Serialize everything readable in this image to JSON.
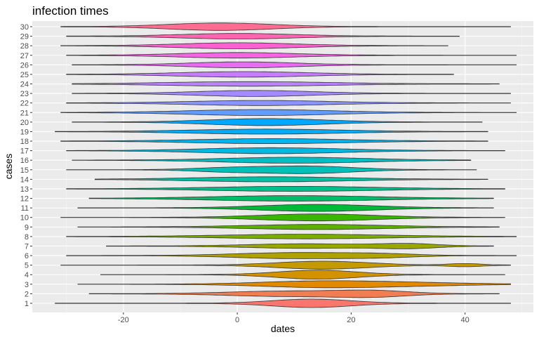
{
  "chart_data": {
    "type": "violin",
    "title": "infection times",
    "xlabel": "dates",
    "ylabel": "cases",
    "xlim": [
      -36,
      52
    ],
    "x_ticks": [
      -20,
      0,
      20,
      40
    ],
    "x_tick_labels": [
      "-20",
      "0",
      "20",
      "40"
    ],
    "grid": true,
    "legend": "none",
    "categories": [
      "1",
      "2",
      "3",
      "4",
      "5",
      "6",
      "7",
      "8",
      "9",
      "10",
      "11",
      "12",
      "13",
      "14",
      "15",
      "16",
      "17",
      "18",
      "19",
      "20",
      "21",
      "22",
      "23",
      "24",
      "25",
      "26",
      "27",
      "28",
      "29",
      "30"
    ],
    "colors": [
      "#F8766D",
      "#F27D52",
      "#E38900",
      "#D39200",
      "#C49A00",
      "#AFA100",
      "#99A800",
      "#7CAE00",
      "#5BB300",
      "#39B600",
      "#00BA38",
      "#00BE67",
      "#00C08B",
      "#00C1A3",
      "#00C0B8",
      "#00BFC4",
      "#00B9E3",
      "#00B4EF",
      "#00ADFA",
      "#00A9FF",
      "#619CFF",
      "#8B93FF",
      "#A58AFF",
      "#B983FF",
      "#C77CFF",
      "#E76BF3",
      "#F564E3",
      "#FD61D1",
      "#FF64B0",
      "#FF6C91"
    ],
    "series": [
      {
        "name": "1",
        "min": -32,
        "max": 48,
        "peaks": [
          [
            13,
            0.85,
            7
          ]
        ]
      },
      {
        "name": "2",
        "min": -26,
        "max": 46,
        "peaks": [
          [
            9,
            0.55,
            10
          ],
          [
            24,
            0.55,
            6
          ]
        ]
      },
      {
        "name": "3",
        "min": -28,
        "max": 48,
        "peaks": [
          [
            14,
            0.6,
            10
          ],
          [
            30,
            0.3,
            10
          ]
        ]
      },
      {
        "name": "4",
        "min": -24,
        "max": 47,
        "peaks": [
          [
            14,
            0.9,
            7
          ]
        ]
      },
      {
        "name": "5",
        "min": -31,
        "max": 48,
        "peaks": [
          [
            15,
            0.8,
            8
          ],
          [
            40,
            0.3,
            3
          ]
        ]
      },
      {
        "name": "6",
        "min": -30,
        "max": 49,
        "peaks": [
          [
            10,
            0.6,
            10
          ],
          [
            25,
            0.3,
            6
          ]
        ]
      },
      {
        "name": "7",
        "min": -23,
        "max": 45,
        "peaks": [
          [
            12,
            0.45,
            10
          ],
          [
            30,
            0.45,
            5
          ]
        ]
      },
      {
        "name": "8",
        "min": -30,
        "max": 49,
        "peaks": [
          [
            12,
            0.45,
            14
          ]
        ]
      },
      {
        "name": "9",
        "min": -28,
        "max": 46,
        "peaks": [
          [
            14,
            0.5,
            12
          ]
        ]
      },
      {
        "name": "10",
        "min": -31,
        "max": 47,
        "peaks": [
          [
            14,
            0.7,
            10
          ]
        ]
      },
      {
        "name": "11",
        "min": -28,
        "max": 45,
        "peaks": [
          [
            14,
            0.7,
            10
          ]
        ]
      },
      {
        "name": "12",
        "min": -26,
        "max": 45,
        "peaks": [
          [
            10,
            0.55,
            14
          ]
        ]
      },
      {
        "name": "13",
        "min": -30,
        "max": 47,
        "peaks": [
          [
            10,
            0.5,
            14
          ]
        ]
      },
      {
        "name": "14",
        "min": -25,
        "max": 44,
        "peaks": [
          [
            6,
            0.5,
            13
          ]
        ]
      },
      {
        "name": "15",
        "min": -30,
        "max": 42,
        "peaks": [
          [
            12,
            0.75,
            8
          ],
          [
            -2,
            0.35,
            6
          ]
        ]
      },
      {
        "name": "16",
        "min": -29,
        "max": 41,
        "peaks": [
          [
            10,
            0.6,
            12
          ]
        ]
      },
      {
        "name": "17",
        "min": -30,
        "max": 47,
        "peaks": [
          [
            6,
            0.6,
            12
          ]
        ]
      },
      {
        "name": "18",
        "min": -31,
        "max": 44,
        "peaks": [
          [
            6,
            0.5,
            13
          ]
        ]
      },
      {
        "name": "19",
        "min": -32,
        "max": 44,
        "peaks": [
          [
            5,
            0.5,
            13
          ]
        ]
      },
      {
        "name": "20",
        "min": -29,
        "max": 43,
        "peaks": [
          [
            5,
            0.7,
            10
          ]
        ]
      },
      {
        "name": "21",
        "min": -31,
        "max": 49,
        "peaks": [
          [
            4,
            0.6,
            12
          ]
        ]
      },
      {
        "name": "22",
        "min": -30,
        "max": 48,
        "peaks": [
          [
            4,
            0.5,
            12
          ]
        ]
      },
      {
        "name": "23",
        "min": -29,
        "max": 48,
        "peaks": [
          [
            3,
            0.6,
            10
          ]
        ]
      },
      {
        "name": "24",
        "min": -29,
        "max": 46,
        "peaks": [
          [
            2,
            0.45,
            14
          ]
        ]
      },
      {
        "name": "25",
        "min": -30,
        "max": 38,
        "peaks": [
          [
            1,
            0.55,
            11
          ]
        ]
      },
      {
        "name": "26",
        "min": -29,
        "max": 49,
        "peaks": [
          [
            1,
            0.6,
            9
          ]
        ]
      },
      {
        "name": "27",
        "min": -30,
        "max": 49,
        "peaks": [
          [
            0,
            0.55,
            10
          ]
        ]
      },
      {
        "name": "28",
        "min": -31,
        "max": 37,
        "peaks": [
          [
            0,
            0.6,
            10
          ]
        ]
      },
      {
        "name": "29",
        "min": -30,
        "max": 39,
        "peaks": [
          [
            0,
            0.55,
            10
          ]
        ]
      },
      {
        "name": "30",
        "min": -31,
        "max": 48,
        "peaks": [
          [
            -3,
            0.75,
            9
          ]
        ]
      }
    ]
  }
}
